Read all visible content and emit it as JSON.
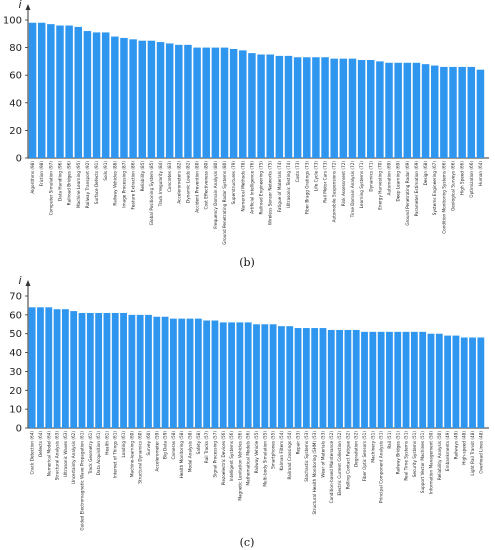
{
  "colors": {
    "bar": "#2f96f0",
    "axis": "#333333",
    "background": "#ffffff"
  },
  "chart_data": [
    {
      "type": "bar",
      "panel_label": "(b)",
      "ylabel": "i",
      "ylim": [
        0,
        100
      ],
      "yticks": [
        0,
        20,
        40,
        60,
        80,
        100
      ],
      "categories": [
        "Algorithms (98)",
        "Friction (98)",
        "Computer Simulation (97)",
        "Data Handling (96)",
        "Railroad Bridges (96)",
        "Machine Learning (95)",
        "Railway Transport (92)",
        "Surface Defects (91)",
        "Soils (91)",
        "Railway Vehicles (88)",
        "Image Processing (87)",
        "Feature Extraction (86)",
        "Reliability (85)",
        "Global Positioning System (85)",
        "Track Irregularity (84)",
        "Concretes (83)",
        "Accelerometers (82)",
        "Dynamic Loads (82)",
        "Accident Prevention (80)",
        "Cost Effectiveness (80)",
        "Frequency Domain Analysis (80)",
        "Ground Penetrating Radar Systems (80)",
        "Superstructures (79)",
        "Numerical Methods (78)",
        "Artificial Intelligence (76)",
        "Railroad Engineering (75)",
        "Wireless Sensor Networks (75)",
        "Fatigue of Materials (74)",
        "Ultrasonic Testing (74)",
        "Costs (73)",
        "Fiber Bragg Gratings (73)",
        "Life Cycle (73)",
        "Rail Motor Cars (73)",
        "Automobile Suspensions (72)",
        "Risk Assessment (72)",
        "Time Domain Analysis (72)",
        "Learning Systems (71)",
        "Dynamics (71)",
        "Energy Harvesting (70)",
        "Automation (69)",
        "Deep Learning (69)",
        "Ground Penetrating Radar (69)",
        "Parameter Estimation (69)",
        "Design (68)",
        "Systems Engineering (67)",
        "Condition Monitoring Systems (66)",
        "Geological Surveys (66)",
        "High Speed (66)",
        "Optimization (66)",
        "Human (64)"
      ],
      "values": [
        98,
        98,
        97,
        96,
        96,
        95,
        92,
        91,
        91,
        88,
        87,
        86,
        85,
        85,
        84,
        83,
        82,
        82,
        80,
        80,
        80,
        80,
        79,
        78,
        76,
        75,
        75,
        74,
        74,
        73,
        73,
        73,
        73,
        72,
        72,
        72,
        71,
        71,
        70,
        69,
        69,
        69,
        69,
        68,
        67,
        66,
        66,
        66,
        66,
        64
      ]
    },
    {
      "type": "bar",
      "panel_label": "(c)",
      "ylabel": "i",
      "ylim": [
        0,
        70
      ],
      "yticks": [
        0,
        10,
        20,
        30,
        40,
        50,
        60,
        70
      ],
      "categories": [
        "Crack Detection (64)",
        "Defects (64)",
        "Numerical Model (64)",
        "Structural Analysis (63)",
        "Ultrasonic Waves (63)",
        "Uncertainty Analysis (62)",
        "Guided Electromagnetic Wave Propagation (61)",
        "Track Geometry (61)",
        "Data Acquisition (61)",
        "Health (61)",
        "Internet of Things (61)",
        "Loading (61)",
        "Machine-learning (60)",
        "Structural Dynamics (60)",
        "Survey (60)",
        "Accelerometer (59)",
        "Big Data (59)",
        "Cameras (58)",
        "Health Monitoring (58)",
        "Modal Analysis (58)",
        "Safety (58)",
        "Rail Tracks (57)",
        "Signal Processing (57)",
        "Piezoelectric Devices (56)",
        "Intelligent Systems (56)",
        "Magnetic Levitation Vehicles (56)",
        "Mathematical Models (56)",
        "Railway Vehicle (55)",
        "Multi-body Simulation (55)",
        "Smartphones (55)",
        "Kalman Filters (54)",
        "Railroad Crossings (54)",
        "Repair (53)",
        "Stochastic Systems (53)",
        "Structural Health Monitoring (SHM) (53)",
        "Wear of Materials (53)",
        "Condition-based Maintenance (52)",
        "Electric Current Collection (52)",
        "Rolling Contact Fatigue (52)",
        "Degradation (52)",
        "Fiber Optic Sensors (51)",
        "Machinery (51)",
        "Principal Component Analysis (51)",
        "Rail (51)",
        "Railway Bridges (51)",
        "Real Time Systems (51)",
        "Security Systems (51)",
        "Support Vector Machines (51)",
        "Information Management (50)",
        "Reliability Analysis (50)",
        "Embankments (49)",
        "Railways (49)",
        "High-speed (48)",
        "Light Rail Transit (48)",
        "Overhead Lines (48)"
      ],
      "values": [
        64,
        64,
        64,
        63,
        63,
        62,
        61,
        61,
        61,
        61,
        61,
        61,
        60,
        60,
        60,
        59,
        59,
        58,
        58,
        58,
        58,
        57,
        57,
        56,
        56,
        56,
        56,
        55,
        55,
        55,
        54,
        54,
        53,
        53,
        53,
        53,
        52,
        52,
        52,
        52,
        51,
        51,
        51,
        51,
        51,
        51,
        51,
        51,
        50,
        50,
        49,
        49,
        48,
        48,
        48
      ]
    }
  ]
}
